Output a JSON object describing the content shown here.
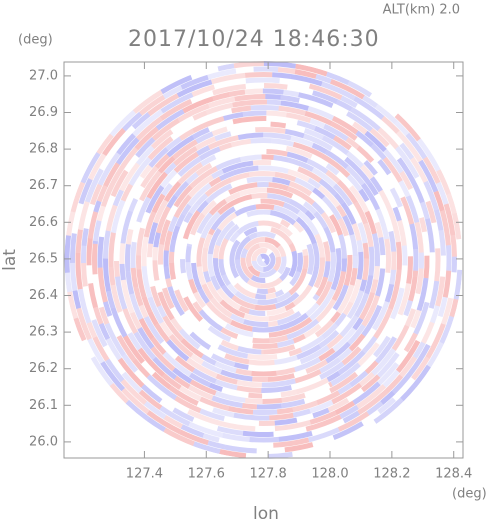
{
  "chart_data": {
    "type": "radar-ppi",
    "title": "2017/10/24 18:46:30",
    "subtitle": "ALT(km) 2.0",
    "x_label": "lon",
    "y_label": "lat",
    "x_unit": "(deg)",
    "y_unit": "(deg)",
    "xlim": [
      127.14,
      128.43
    ],
    "ylim": [
      25.956,
      27.038
    ],
    "xticks": [
      127.4,
      127.6,
      127.8,
      {
        "value": 128.0,
        "label": "128.0"
      },
      128.2,
      128.4
    ],
    "yticks": [
      {
        "value": 26.0,
        "label": "26.0"
      },
      26.1,
      26.2,
      26.3,
      26.4,
      26.5,
      26.6,
      26.7,
      26.8,
      26.9,
      {
        "value": 27.0,
        "label": "27.0"
      }
    ]
  }
}
